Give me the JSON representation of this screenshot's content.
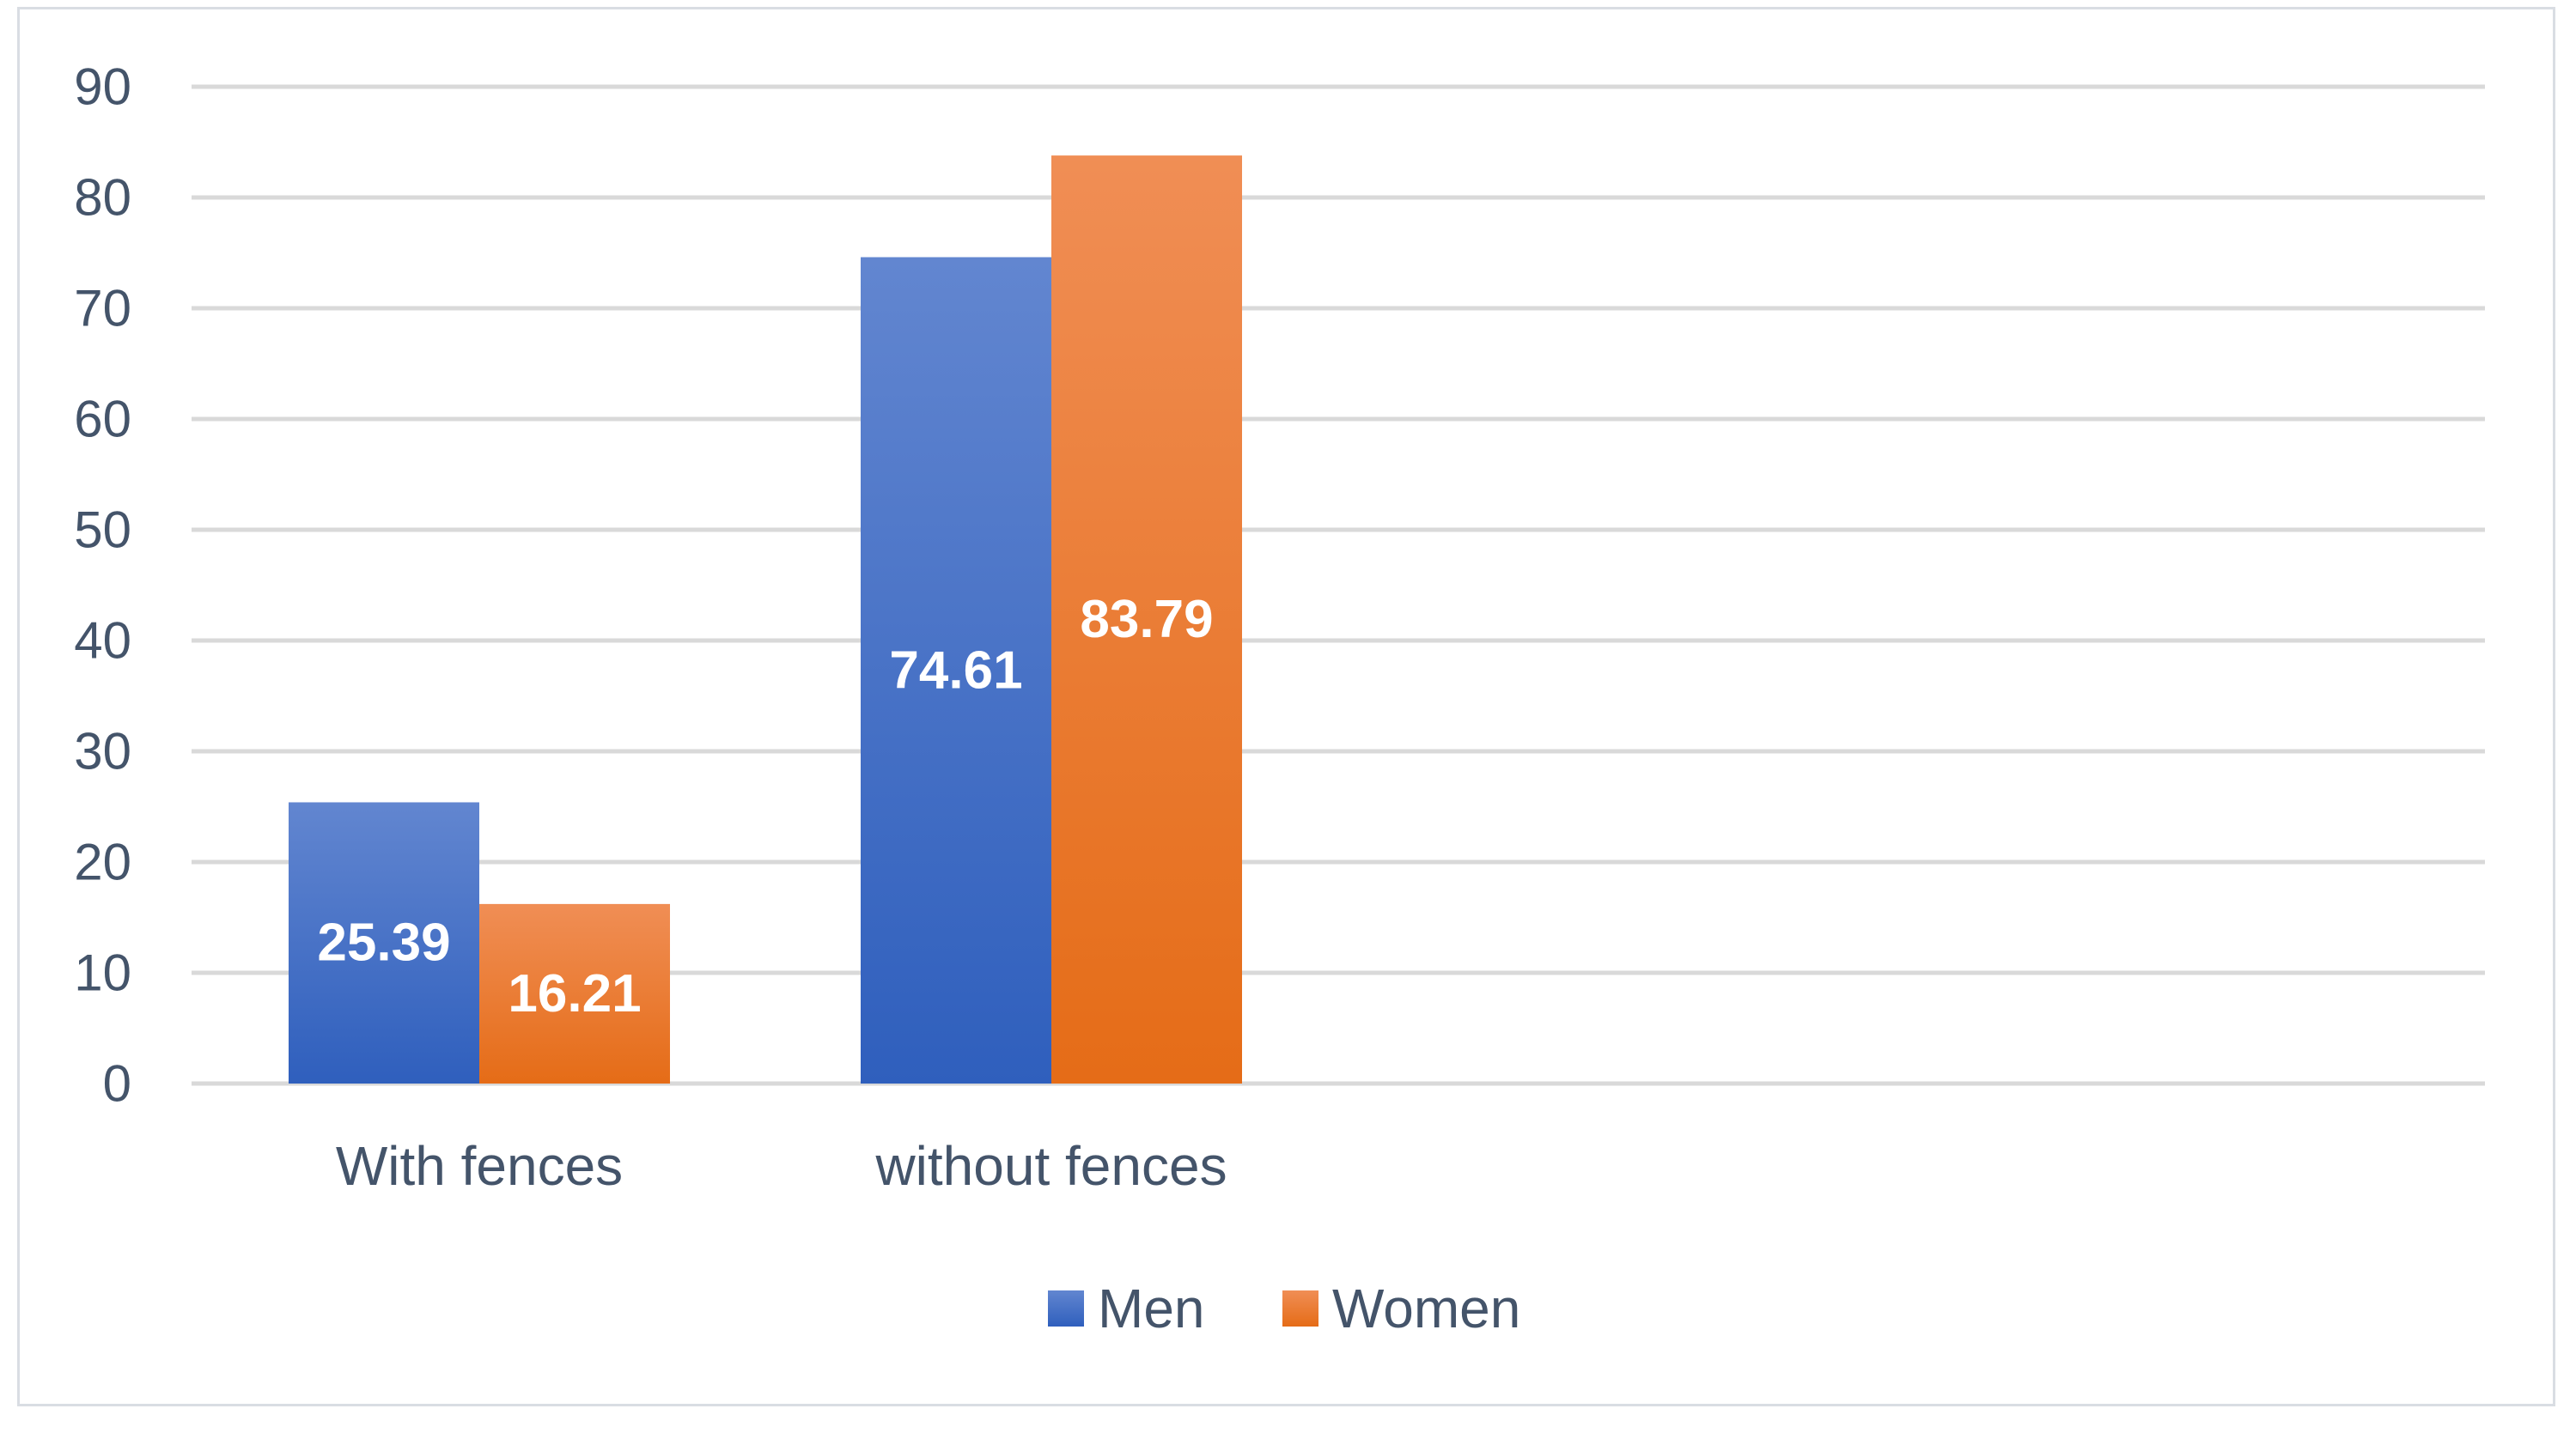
{
  "chart_data": {
    "type": "bar",
    "title": "",
    "xlabel": "",
    "ylabel": "",
    "ylim": [
      0,
      90
    ],
    "yticks": [
      0,
      10,
      20,
      30,
      40,
      50,
      60,
      70,
      80,
      90
    ],
    "grid": true,
    "legend_position": "bottom",
    "categories": [
      "With fences",
      "without fences"
    ],
    "series": [
      {
        "name": "Men",
        "values": [
          25.39,
          74.61
        ],
        "labels": [
          "25.39",
          "74.61"
        ],
        "color": "#4472c4"
      },
      {
        "name": "Women",
        "values": [
          16.21,
          83.79
        ],
        "labels": [
          "16.21",
          "83.79"
        ],
        "color": "#ed7d31"
      }
    ]
  }
}
